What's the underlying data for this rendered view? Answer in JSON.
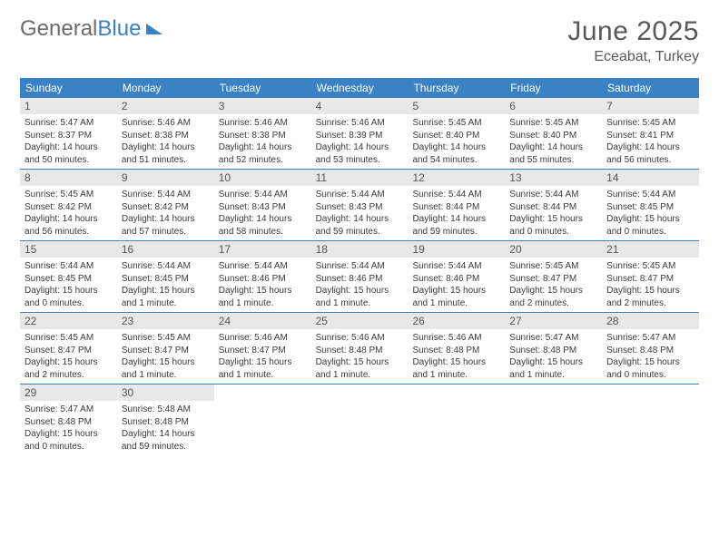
{
  "logo": {
    "part1": "General",
    "part2": "Blue"
  },
  "title": "June 2025",
  "location": "Eceabat, Turkey",
  "colors": {
    "header_bg": "#3b82c4",
    "header_text": "#ffffff",
    "daynum_bg": "#e8e8e8",
    "daynum_text": "#555555",
    "body_text": "#3a3a3a",
    "title_text": "#595959",
    "rule": "#3b82c4",
    "page_bg": "#ffffff"
  },
  "typography": {
    "title_fontsize": 30,
    "location_fontsize": 16,
    "weekday_fontsize": 12,
    "daynum_fontsize": 12,
    "body_fontsize": 10
  },
  "weekdays": [
    "Sunday",
    "Monday",
    "Tuesday",
    "Wednesday",
    "Thursday",
    "Friday",
    "Saturday"
  ],
  "weeks": [
    [
      {
        "n": "1",
        "sr": "Sunrise: 5:47 AM",
        "ss": "Sunset: 8:37 PM",
        "d1": "Daylight: 14 hours",
        "d2": "and 50 minutes."
      },
      {
        "n": "2",
        "sr": "Sunrise: 5:46 AM",
        "ss": "Sunset: 8:38 PM",
        "d1": "Daylight: 14 hours",
        "d2": "and 51 minutes."
      },
      {
        "n": "3",
        "sr": "Sunrise: 5:46 AM",
        "ss": "Sunset: 8:38 PM",
        "d1": "Daylight: 14 hours",
        "d2": "and 52 minutes."
      },
      {
        "n": "4",
        "sr": "Sunrise: 5:46 AM",
        "ss": "Sunset: 8:39 PM",
        "d1": "Daylight: 14 hours",
        "d2": "and 53 minutes."
      },
      {
        "n": "5",
        "sr": "Sunrise: 5:45 AM",
        "ss": "Sunset: 8:40 PM",
        "d1": "Daylight: 14 hours",
        "d2": "and 54 minutes."
      },
      {
        "n": "6",
        "sr": "Sunrise: 5:45 AM",
        "ss": "Sunset: 8:40 PM",
        "d1": "Daylight: 14 hours",
        "d2": "and 55 minutes."
      },
      {
        "n": "7",
        "sr": "Sunrise: 5:45 AM",
        "ss": "Sunset: 8:41 PM",
        "d1": "Daylight: 14 hours",
        "d2": "and 56 minutes."
      }
    ],
    [
      {
        "n": "8",
        "sr": "Sunrise: 5:45 AM",
        "ss": "Sunset: 8:42 PM",
        "d1": "Daylight: 14 hours",
        "d2": "and 56 minutes."
      },
      {
        "n": "9",
        "sr": "Sunrise: 5:44 AM",
        "ss": "Sunset: 8:42 PM",
        "d1": "Daylight: 14 hours",
        "d2": "and 57 minutes."
      },
      {
        "n": "10",
        "sr": "Sunrise: 5:44 AM",
        "ss": "Sunset: 8:43 PM",
        "d1": "Daylight: 14 hours",
        "d2": "and 58 minutes."
      },
      {
        "n": "11",
        "sr": "Sunrise: 5:44 AM",
        "ss": "Sunset: 8:43 PM",
        "d1": "Daylight: 14 hours",
        "d2": "and 59 minutes."
      },
      {
        "n": "12",
        "sr": "Sunrise: 5:44 AM",
        "ss": "Sunset: 8:44 PM",
        "d1": "Daylight: 14 hours",
        "d2": "and 59 minutes."
      },
      {
        "n": "13",
        "sr": "Sunrise: 5:44 AM",
        "ss": "Sunset: 8:44 PM",
        "d1": "Daylight: 15 hours",
        "d2": "and 0 minutes."
      },
      {
        "n": "14",
        "sr": "Sunrise: 5:44 AM",
        "ss": "Sunset: 8:45 PM",
        "d1": "Daylight: 15 hours",
        "d2": "and 0 minutes."
      }
    ],
    [
      {
        "n": "15",
        "sr": "Sunrise: 5:44 AM",
        "ss": "Sunset: 8:45 PM",
        "d1": "Daylight: 15 hours",
        "d2": "and 0 minutes."
      },
      {
        "n": "16",
        "sr": "Sunrise: 5:44 AM",
        "ss": "Sunset: 8:45 PM",
        "d1": "Daylight: 15 hours",
        "d2": "and 1 minute."
      },
      {
        "n": "17",
        "sr": "Sunrise: 5:44 AM",
        "ss": "Sunset: 8:46 PM",
        "d1": "Daylight: 15 hours",
        "d2": "and 1 minute."
      },
      {
        "n": "18",
        "sr": "Sunrise: 5:44 AM",
        "ss": "Sunset: 8:46 PM",
        "d1": "Daylight: 15 hours",
        "d2": "and 1 minute."
      },
      {
        "n": "19",
        "sr": "Sunrise: 5:44 AM",
        "ss": "Sunset: 8:46 PM",
        "d1": "Daylight: 15 hours",
        "d2": "and 1 minute."
      },
      {
        "n": "20",
        "sr": "Sunrise: 5:45 AM",
        "ss": "Sunset: 8:47 PM",
        "d1": "Daylight: 15 hours",
        "d2": "and 2 minutes."
      },
      {
        "n": "21",
        "sr": "Sunrise: 5:45 AM",
        "ss": "Sunset: 8:47 PM",
        "d1": "Daylight: 15 hours",
        "d2": "and 2 minutes."
      }
    ],
    [
      {
        "n": "22",
        "sr": "Sunrise: 5:45 AM",
        "ss": "Sunset: 8:47 PM",
        "d1": "Daylight: 15 hours",
        "d2": "and 2 minutes."
      },
      {
        "n": "23",
        "sr": "Sunrise: 5:45 AM",
        "ss": "Sunset: 8:47 PM",
        "d1": "Daylight: 15 hours",
        "d2": "and 1 minute."
      },
      {
        "n": "24",
        "sr": "Sunrise: 5:46 AM",
        "ss": "Sunset: 8:47 PM",
        "d1": "Daylight: 15 hours",
        "d2": "and 1 minute."
      },
      {
        "n": "25",
        "sr": "Sunrise: 5:46 AM",
        "ss": "Sunset: 8:48 PM",
        "d1": "Daylight: 15 hours",
        "d2": "and 1 minute."
      },
      {
        "n": "26",
        "sr": "Sunrise: 5:46 AM",
        "ss": "Sunset: 8:48 PM",
        "d1": "Daylight: 15 hours",
        "d2": "and 1 minute."
      },
      {
        "n": "27",
        "sr": "Sunrise: 5:47 AM",
        "ss": "Sunset: 8:48 PM",
        "d1": "Daylight: 15 hours",
        "d2": "and 1 minute."
      },
      {
        "n": "28",
        "sr": "Sunrise: 5:47 AM",
        "ss": "Sunset: 8:48 PM",
        "d1": "Daylight: 15 hours",
        "d2": "and 0 minutes."
      }
    ],
    [
      {
        "n": "29",
        "sr": "Sunrise: 5:47 AM",
        "ss": "Sunset: 8:48 PM",
        "d1": "Daylight: 15 hours",
        "d2": "and 0 minutes."
      },
      {
        "n": "30",
        "sr": "Sunrise: 5:48 AM",
        "ss": "Sunset: 8:48 PM",
        "d1": "Daylight: 14 hours",
        "d2": "and 59 minutes."
      },
      null,
      null,
      null,
      null,
      null
    ]
  ]
}
